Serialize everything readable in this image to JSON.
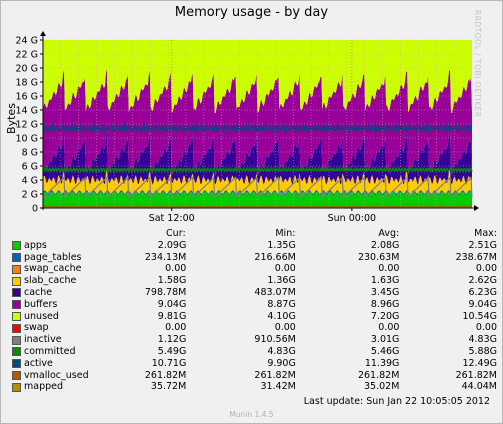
{
  "title": "Memory usage - by day",
  "watermark": "RRDTOOL / TOBI OETIKER",
  "footer": {
    "version": "Munin 1.4.5",
    "last_update": "Last update: Sun Jan 22 10:05:05 2012"
  },
  "colors": {
    "plot_bg": "#ffffff",
    "grid": "#e2a0a0",
    "axis": "#000000",
    "apps": "#00cc00",
    "page_tables": "#0066b3",
    "swap_cache": "#ff8000",
    "slab_cache": "#ffcc00",
    "cache": "#330099",
    "buffers": "#990099",
    "unused": "#ccff00",
    "swap": "#ff0000",
    "inactive": "#808080",
    "committed": "#008f00",
    "active": "#00487d",
    "vmalloc_used": "#b35a00",
    "mapped": "#b38f00"
  },
  "legend": {
    "headers": [
      "Cur:",
      "Min:",
      "Avg:",
      "Max:"
    ],
    "rows": [
      {
        "name": "apps",
        "color": "#00cc00",
        "cur": "2.09G",
        "min": "1.35G",
        "avg": "2.08G",
        "max": "2.51G"
      },
      {
        "name": "page_tables",
        "color": "#0066b3",
        "cur": "234.13M",
        "min": "216.66M",
        "avg": "230.63M",
        "max": "238.67M"
      },
      {
        "name": "swap_cache",
        "color": "#ff8000",
        "cur": "0.00",
        "min": "0.00",
        "avg": "0.00",
        "max": "0.00"
      },
      {
        "name": "slab_cache",
        "color": "#ffcc00",
        "cur": "1.58G",
        "min": "1.36G",
        "avg": "1.63G",
        "max": "2.62G"
      },
      {
        "name": "cache",
        "color": "#330099",
        "cur": "798.78M",
        "min": "483.07M",
        "avg": "3.45G",
        "max": "6.23G"
      },
      {
        "name": "buffers",
        "color": "#990099",
        "cur": "9.04G",
        "min": "8.87G",
        "avg": "8.96G",
        "max": "9.04G"
      },
      {
        "name": "unused",
        "color": "#ccff00",
        "cur": "9.81G",
        "min": "4.10G",
        "avg": "7.20G",
        "max": "10.54G"
      },
      {
        "name": "swap",
        "color": "#ff0000",
        "cur": "0.00",
        "min": "0.00",
        "avg": "0.00",
        "max": "0.00"
      },
      {
        "name": "inactive",
        "color": "#808080",
        "cur": "1.12G",
        "min": "910.56M",
        "avg": "3.01G",
        "max": "4.83G"
      },
      {
        "name": "committed",
        "color": "#008f00",
        "cur": "5.49G",
        "min": "4.83G",
        "avg": "5.46G",
        "max": "5.88G"
      },
      {
        "name": "active",
        "color": "#00487d",
        "cur": "10.71G",
        "min": "9.90G",
        "avg": "11.39G",
        "max": "12.49G"
      },
      {
        "name": "vmalloc_used",
        "color": "#b35a00",
        "cur": "261.82M",
        "min": "261.82M",
        "avg": "261.82M",
        "max": "261.82M"
      },
      {
        "name": "mapped",
        "color": "#b38f00",
        "cur": "35.72M",
        "min": "31.42M",
        "avg": "35.02M",
        "max": "44.04M"
      }
    ]
  },
  "chart_data": {
    "type": "area",
    "title": "Memory usage - by day",
    "ylabel": "Bytes",
    "xlabel": "",
    "ylim": [
      0,
      24
    ],
    "y_unit": "G",
    "y_ticks": [
      0,
      2,
      4,
      6,
      8,
      10,
      12,
      14,
      16,
      18,
      20,
      22,
      24
    ],
    "y_tick_labels": [
      "0",
      "2 G",
      "4 G",
      "6 G",
      "8 G",
      "10 G",
      "12 G",
      "14 G",
      "16 G",
      "18 G",
      "20 G",
      "22 G",
      "24 G"
    ],
    "x_tick_labels": [
      "Sat 12:00",
      "Sun 00:00"
    ],
    "x_tick_pos": [
      0.3,
      0.72
    ],
    "grid": true,
    "stack_order": [
      "apps",
      "page_tables",
      "swap_cache",
      "slab_cache",
      "cache",
      "buffers",
      "unused",
      "swap"
    ],
    "stacked_totals_gb": 24,
    "sawtooth_cycles": 20,
    "series": [
      {
        "name": "apps",
        "value_gb": 2.08
      },
      {
        "name": "page_tables",
        "value_gb": 0.23
      },
      {
        "name": "swap_cache",
        "value_gb": 0
      },
      {
        "name": "slab_cache",
        "value_gb": 1.63,
        "range": [
          1.36,
          2.62
        ]
      },
      {
        "name": "cache",
        "value_gb": 3.45,
        "range": [
          0.48,
          6.23
        ]
      },
      {
        "name": "buffers",
        "value_gb": 8.96,
        "range": [
          8.87,
          9.04
        ]
      },
      {
        "name": "unused",
        "value_gb": 7.2,
        "range": [
          4.1,
          10.54
        ]
      },
      {
        "name": "swap",
        "value_gb": 0
      }
    ],
    "lines": [
      {
        "name": "inactive",
        "value_gb": 3.01,
        "range": [
          0.91,
          4.83
        ]
      },
      {
        "name": "committed",
        "value_gb": 5.46,
        "range": [
          4.83,
          5.88
        ]
      },
      {
        "name": "active",
        "value_gb": 11.39,
        "range": [
          9.9,
          12.49
        ]
      },
      {
        "name": "vmalloc_used",
        "value_gb": 0.26
      },
      {
        "name": "mapped",
        "value_gb": 0.04
      }
    ]
  }
}
